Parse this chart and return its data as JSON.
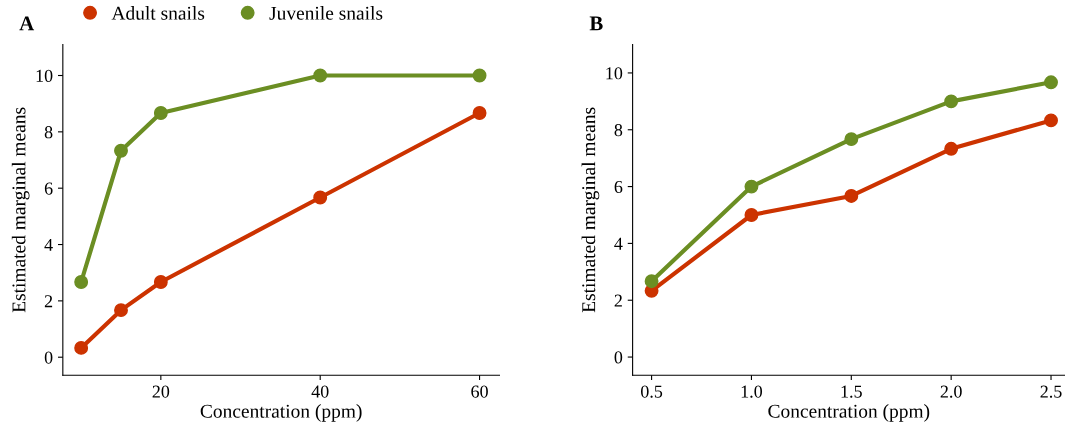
{
  "chart_data": [
    {
      "type": "line",
      "title": "A",
      "xlabel": "Concentration (ppm)",
      "ylabel": "Estimated marginal means",
      "x": [
        10,
        15,
        20,
        40,
        60
      ],
      "series": [
        {
          "name": "Adult snails",
          "color": "#cc3300",
          "values": [
            0.33,
            1.67,
            2.67,
            5.67,
            8.67
          ]
        },
        {
          "name": "Juvenile snails",
          "color": "#6b8e23",
          "values": [
            2.67,
            7.33,
            8.67,
            10,
            10
          ]
        }
      ],
      "xlim": [
        7.7,
        62.5
      ],
      "xticks": [
        20,
        40,
        60
      ],
      "ylim": [
        -0.64,
        11.1
      ],
      "yticks": [
        0,
        2,
        4,
        6,
        8,
        10
      ],
      "marker": "circle",
      "line_style": "solid",
      "grid": false,
      "legend": "top"
    },
    {
      "type": "line",
      "title": "B",
      "xlabel": "Concentration (ppm)",
      "ylabel": "Estimated marginal means",
      "x": [
        0.5,
        1.0,
        1.5,
        2.0,
        2.5
      ],
      "series": [
        {
          "color": "#cc3300",
          "values": [
            2.33,
            5,
            5.67,
            7.33,
            8.33
          ]
        },
        {
          "color": "#6b8e23",
          "values": [
            2.67,
            6,
            7.67,
            9,
            9.67
          ]
        }
      ],
      "xlim": [
        0.405,
        2.57
      ],
      "xticks": [
        {
          "value": 0.5,
          "label": "0.5"
        },
        {
          "value": 1.0,
          "label": "1.0"
        },
        {
          "value": 1.5,
          "label": "1.5"
        },
        {
          "value": 2.0,
          "label": "2.0"
        },
        {
          "value": 2.5,
          "label": "2.5"
        }
      ],
      "ylim": [
        -0.64,
        11.0
      ],
      "yticks": [
        0,
        2,
        4,
        6,
        8,
        10
      ],
      "marker": "circle",
      "line_style": "solid",
      "grid": false
    }
  ]
}
